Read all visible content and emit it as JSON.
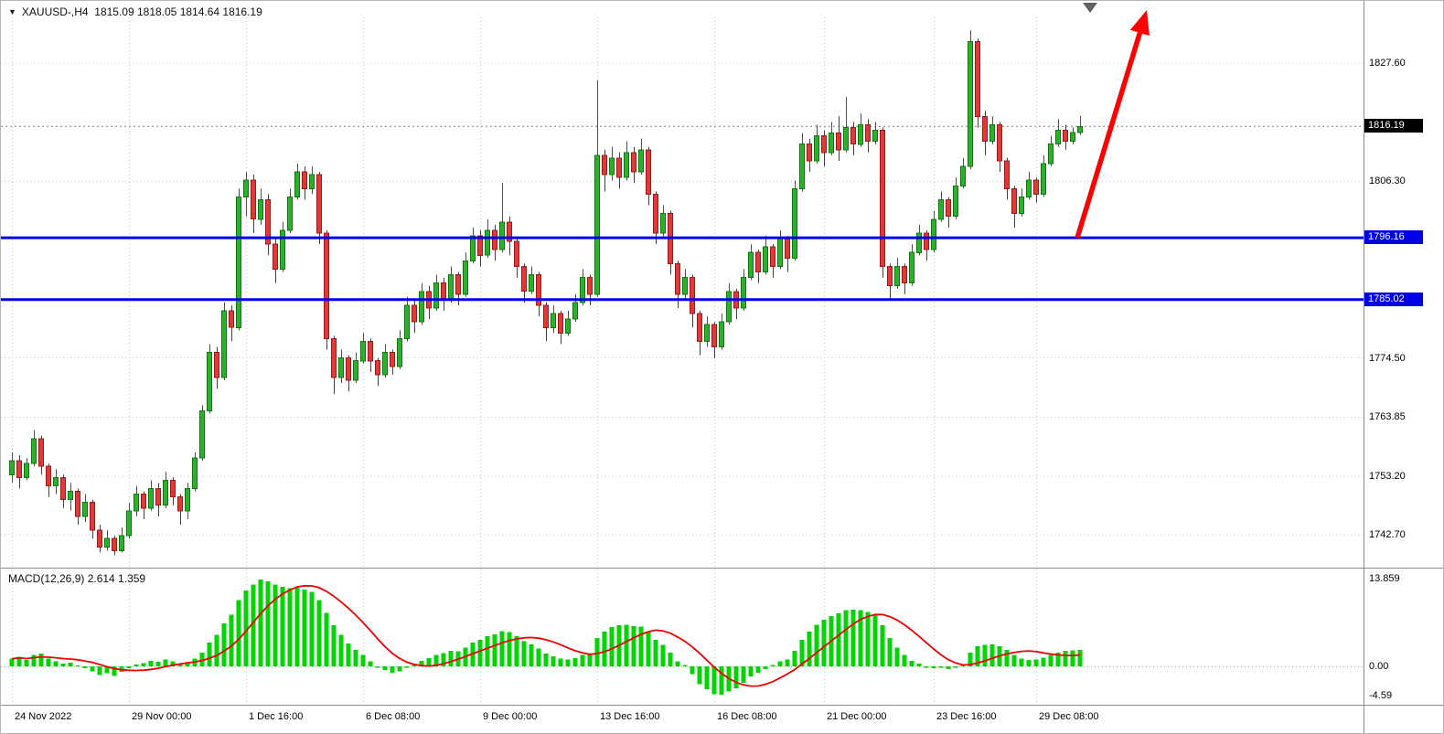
{
  "window": {
    "symbol_info": "XAUUSD-,H4  1815.09 1818.05 1814.64 1816.19",
    "symbol": "XAUUSD-",
    "timeframe": "H4",
    "open": "1815.09",
    "high": "1818.05",
    "low": "1814.64",
    "close": "1816.19"
  },
  "icons": {
    "symbol_marker": "▼"
  },
  "chart_data": {
    "type": "candlestick",
    "title": "XAUUSD- H4 candlestick chart with MACD(12,26,9), two blue horizontal levels and red up trend arrow",
    "symbol": "XAUUSD-",
    "timeframe": "H4",
    "grid": true,
    "price_axis": {
      "side": "right",
      "ticks": [
        {
          "label": "1827.60",
          "value": 1827.6
        },
        {
          "label": "1806.30",
          "value": 1806.3
        },
        {
          "label": "1774.50",
          "value": 1774.5
        },
        {
          "label": "1763.85",
          "value": 1763.85
        },
        {
          "label": "1753.20",
          "value": 1753.2
        },
        {
          "label": "1742.70",
          "value": 1742.7
        }
      ],
      "grid_values": [
        1827.6,
        1816.95,
        1806.3,
        1774.5,
        1763.85,
        1753.2,
        1742.7
      ],
      "current_price": {
        "value": 1816.19,
        "label": "1816.19"
      }
    },
    "time_axis": {
      "ticks": [
        {
          "index": 0,
          "label": "24 Nov 2022"
        },
        {
          "index": 16,
          "label": "29 Nov 00:00"
        },
        {
          "index": 32,
          "label": "1 Dec 16:00"
        },
        {
          "index": 48,
          "label": "6 Dec 08:00"
        },
        {
          "index": 64,
          "label": "9 Dec 00:00"
        },
        {
          "index": 80,
          "label": "13 Dec 16:00"
        },
        {
          "index": 96,
          "label": "16 Dec 08:00"
        },
        {
          "index": 111,
          "label": "21 Dec 00:00"
        },
        {
          "index": 126,
          "label": "23 Dec 16:00"
        },
        {
          "index": 140,
          "label": "29 Dec 08:00"
        }
      ]
    },
    "horizontal_lines": [
      {
        "price": 1796.16,
        "label": "1796.16",
        "color": "#0000E8",
        "name": "resistance-line"
      },
      {
        "price": 1785.02,
        "label": "1785.02",
        "color": "#0000E8",
        "name": "support-line"
      }
    ],
    "annotations": {
      "trend_arrow": {
        "type": "arrow",
        "direction": "up",
        "color": "#FF0000"
      },
      "chart_shift_marker": true
    },
    "candles": [
      [
        1753.5,
        1757.5,
        1752.0,
        1756.0
      ],
      [
        1756.0,
        1757.0,
        1751.0,
        1753.0
      ],
      [
        1753.0,
        1756.5,
        1752.5,
        1755.5
      ],
      [
        1755.5,
        1761.5,
        1755.0,
        1760.0
      ],
      [
        1760.0,
        1760.5,
        1753.5,
        1755.0
      ],
      [
        1755.0,
        1755.5,
        1749.5,
        1751.5
      ],
      [
        1751.5,
        1754.5,
        1750.0,
        1753.0
      ],
      [
        1753.0,
        1753.5,
        1747.5,
        1749.0
      ],
      [
        1749.0,
        1752.0,
        1747.0,
        1750.5
      ],
      [
        1750.5,
        1751.0,
        1744.5,
        1746.0
      ],
      [
        1746.0,
        1750.0,
        1745.0,
        1748.5
      ],
      [
        1748.5,
        1749.0,
        1742.0,
        1743.5
      ],
      [
        1743.5,
        1744.5,
        1739.5,
        1740.5
      ],
      [
        1740.5,
        1743.5,
        1739.8,
        1742.0
      ],
      [
        1742.0,
        1742.5,
        1739.0,
        1739.8
      ],
      [
        1739.8,
        1744.0,
        1739.5,
        1742.5
      ],
      [
        1742.5,
        1748.5,
        1742.0,
        1747.0
      ],
      [
        1747.0,
        1751.5,
        1746.0,
        1750.0
      ],
      [
        1750.0,
        1750.5,
        1745.5,
        1747.5
      ],
      [
        1747.5,
        1752.5,
        1747.0,
        1751.0
      ],
      [
        1751.0,
        1752.0,
        1746.0,
        1748.0
      ],
      [
        1748.0,
        1754.0,
        1747.5,
        1752.5
      ],
      [
        1752.5,
        1753.0,
        1748.0,
        1749.5
      ],
      [
        1749.5,
        1750.0,
        1744.5,
        1747.0
      ],
      [
        1747.0,
        1752.0,
        1745.5,
        1751.0
      ],
      [
        1751.0,
        1757.5,
        1750.5,
        1756.5
      ],
      [
        1756.5,
        1766.0,
        1756.0,
        1765.0
      ],
      [
        1765.0,
        1777.0,
        1764.5,
        1775.5
      ],
      [
        1775.5,
        1776.5,
        1769.0,
        1771.0
      ],
      [
        1771.0,
        1784.5,
        1770.5,
        1783.0
      ],
      [
        1783.0,
        1784.0,
        1777.5,
        1780.0
      ],
      [
        1780.0,
        1805.0,
        1779.5,
        1803.5
      ],
      [
        1803.5,
        1808.0,
        1800.0,
        1806.5
      ],
      [
        1806.5,
        1807.5,
        1797.0,
        1799.5
      ],
      [
        1799.5,
        1805.0,
        1798.5,
        1803.0
      ],
      [
        1803.0,
        1804.0,
        1793.0,
        1795.0
      ],
      [
        1795.0,
        1796.0,
        1788.0,
        1790.5
      ],
      [
        1790.5,
        1799.0,
        1790.0,
        1797.5
      ],
      [
        1797.5,
        1805.0,
        1797.0,
        1803.5
      ],
      [
        1803.5,
        1809.5,
        1803.0,
        1808.0
      ],
      [
        1808.0,
        1809.0,
        1803.0,
        1805.0
      ],
      [
        1805.0,
        1809.0,
        1804.0,
        1807.5
      ],
      [
        1807.5,
        1808.0,
        1795.0,
        1797.0
      ],
      [
        1797.0,
        1797.5,
        1776.0,
        1778.0
      ],
      [
        1778.0,
        1778.5,
        1768.0,
        1771.0
      ],
      [
        1771.0,
        1776.0,
        1770.0,
        1774.5
      ],
      [
        1774.5,
        1775.0,
        1768.5,
        1770.5
      ],
      [
        1770.5,
        1775.5,
        1770.0,
        1774.0
      ],
      [
        1774.0,
        1779.0,
        1773.5,
        1777.5
      ],
      [
        1777.5,
        1778.0,
        1772.0,
        1774.0
      ],
      [
        1774.0,
        1774.5,
        1769.5,
        1771.5
      ],
      [
        1771.5,
        1777.0,
        1771.0,
        1775.5
      ],
      [
        1775.5,
        1776.0,
        1771.5,
        1773.0
      ],
      [
        1773.0,
        1779.5,
        1772.5,
        1778.0
      ],
      [
        1778.0,
        1785.5,
        1777.5,
        1784.0
      ],
      [
        1784.0,
        1785.0,
        1779.0,
        1781.0
      ],
      [
        1781.0,
        1788.0,
        1780.5,
        1786.5
      ],
      [
        1786.5,
        1787.5,
        1781.5,
        1783.5
      ],
      [
        1783.5,
        1789.5,
        1783.0,
        1788.0
      ],
      [
        1788.0,
        1789.0,
        1783.0,
        1785.0
      ],
      [
        1785.0,
        1791.0,
        1784.5,
        1789.5
      ],
      [
        1789.5,
        1790.0,
        1784.0,
        1786.0
      ],
      [
        1786.0,
        1793.5,
        1785.5,
        1792.0
      ],
      [
        1792.0,
        1798.0,
        1791.5,
        1796.5
      ],
      [
        1796.5,
        1797.5,
        1791.0,
        1793.0
      ],
      [
        1793.0,
        1799.5,
        1792.5,
        1797.5
      ],
      [
        1797.5,
        1798.5,
        1792.0,
        1794.0
      ],
      [
        1794.0,
        1806.0,
        1793.5,
        1799.0
      ],
      [
        1799.0,
        1800.0,
        1793.0,
        1795.5
      ],
      [
        1795.5,
        1796.0,
        1789.0,
        1791.0
      ],
      [
        1791.0,
        1791.5,
        1784.5,
        1786.5
      ],
      [
        1786.5,
        1791.0,
        1786.0,
        1789.5
      ],
      [
        1789.5,
        1790.0,
        1782.0,
        1784.0
      ],
      [
        1784.0,
        1784.5,
        1777.5,
        1780.0
      ],
      [
        1780.0,
        1784.0,
        1779.0,
        1782.5
      ],
      [
        1782.5,
        1783.0,
        1777.0,
        1779.0
      ],
      [
        1779.0,
        1783.0,
        1778.5,
        1781.5
      ],
      [
        1781.5,
        1786.0,
        1781.0,
        1784.5
      ],
      [
        1784.5,
        1790.5,
        1784.0,
        1789.0
      ],
      [
        1789.0,
        1789.5,
        1784.0,
        1786.0
      ],
      [
        1786.0,
        1824.5,
        1785.5,
        1811.0
      ],
      [
        1811.0,
        1812.0,
        1804.5,
        1807.5
      ],
      [
        1807.5,
        1812.5,
        1806.5,
        1810.5
      ],
      [
        1810.5,
        1811.5,
        1805.0,
        1807.0
      ],
      [
        1807.0,
        1813.5,
        1806.5,
        1811.5
      ],
      [
        1811.5,
        1812.5,
        1806.0,
        1808.0
      ],
      [
        1808.0,
        1814.0,
        1807.5,
        1812.0
      ],
      [
        1812.0,
        1812.5,
        1802.0,
        1804.0
      ],
      [
        1804.0,
        1804.5,
        1795.0,
        1797.0
      ],
      [
        1797.0,
        1802.0,
        1796.0,
        1800.5
      ],
      [
        1800.5,
        1801.0,
        1789.5,
        1791.5
      ],
      [
        1791.5,
        1792.0,
        1783.5,
        1786.0
      ],
      [
        1786.0,
        1790.5,
        1785.0,
        1789.0
      ],
      [
        1789.0,
        1789.5,
        1780.0,
        1782.5
      ],
      [
        1782.5,
        1783.0,
        1775.0,
        1777.5
      ],
      [
        1777.5,
        1782.0,
        1776.5,
        1780.5
      ],
      [
        1780.5,
        1781.0,
        1774.5,
        1776.5
      ],
      [
        1776.5,
        1782.5,
        1776.0,
        1781.0
      ],
      [
        1781.0,
        1788.0,
        1780.5,
        1786.5
      ],
      [
        1786.5,
        1787.0,
        1781.5,
        1783.5
      ],
      [
        1783.5,
        1790.5,
        1783.0,
        1789.0
      ],
      [
        1789.0,
        1795.0,
        1788.5,
        1793.5
      ],
      [
        1793.5,
        1794.0,
        1788.0,
        1790.0
      ],
      [
        1790.0,
        1796.5,
        1789.5,
        1794.5
      ],
      [
        1794.5,
        1795.0,
        1789.0,
        1791.0
      ],
      [
        1791.0,
        1797.5,
        1790.5,
        1796.0
      ],
      [
        1796.0,
        1796.5,
        1790.0,
        1792.5
      ],
      [
        1792.5,
        1806.5,
        1792.0,
        1805.0
      ],
      [
        1805.0,
        1815.0,
        1804.5,
        1813.0
      ],
      [
        1813.0,
        1814.0,
        1808.0,
        1810.0
      ],
      [
        1810.0,
        1816.5,
        1809.5,
        1814.5
      ],
      [
        1814.5,
        1815.5,
        1809.0,
        1811.5
      ],
      [
        1811.5,
        1817.0,
        1811.0,
        1815.0
      ],
      [
        1815.0,
        1818.0,
        1810.0,
        1812.0
      ],
      [
        1812.0,
        1821.5,
        1811.5,
        1816.0
      ],
      [
        1816.0,
        1817.0,
        1811.0,
        1813.0
      ],
      [
        1813.0,
        1818.5,
        1812.5,
        1816.5
      ],
      [
        1816.5,
        1817.5,
        1811.5,
        1813.5
      ],
      [
        1813.5,
        1817.0,
        1813.0,
        1815.5
      ],
      [
        1815.5,
        1816.0,
        1789.0,
        1791.0
      ],
      [
        1791.0,
        1791.5,
        1785.0,
        1787.5
      ],
      [
        1787.5,
        1792.5,
        1787.0,
        1791.0
      ],
      [
        1791.0,
        1791.5,
        1786.0,
        1788.0
      ],
      [
        1788.0,
        1795.0,
        1787.5,
        1793.5
      ],
      [
        1793.5,
        1798.5,
        1793.0,
        1797.0
      ],
      [
        1797.0,
        1797.5,
        1792.0,
        1794.0
      ],
      [
        1794.0,
        1801.0,
        1793.5,
        1799.5
      ],
      [
        1799.5,
        1804.5,
        1799.0,
        1803.0
      ],
      [
        1803.0,
        1803.5,
        1798.0,
        1800.0
      ],
      [
        1800.0,
        1807.0,
        1799.5,
        1805.5
      ],
      [
        1805.5,
        1810.5,
        1805.0,
        1809.0
      ],
      [
        1809.0,
        1833.5,
        1808.5,
        1831.5
      ],
      [
        1831.5,
        1832.0,
        1816.0,
        1818.0
      ],
      [
        1818.0,
        1819.0,
        1811.0,
        1813.5
      ],
      [
        1813.5,
        1818.0,
        1813.0,
        1816.5
      ],
      [
        1816.5,
        1817.0,
        1808.0,
        1810.0
      ],
      [
        1810.0,
        1810.5,
        1803.0,
        1805.0
      ],
      [
        1805.0,
        1805.5,
        1798.0,
        1800.5
      ],
      [
        1800.5,
        1805.0,
        1800.0,
        1803.5
      ],
      [
        1803.5,
        1808.0,
        1803.0,
        1806.5
      ],
      [
        1806.5,
        1807.0,
        1802.5,
        1804.0
      ],
      [
        1804.0,
        1811.0,
        1803.5,
        1809.5
      ],
      [
        1809.5,
        1814.5,
        1809.0,
        1813.0
      ],
      [
        1813.0,
        1817.5,
        1812.5,
        1815.5
      ],
      [
        1815.5,
        1816.5,
        1812.0,
        1813.5
      ],
      [
        1813.5,
        1816.0,
        1813.0,
        1815.09
      ],
      [
        1815.09,
        1818.05,
        1814.64,
        1816.19
      ]
    ],
    "macd": {
      "label": "MACD(12,26,9) 2.614 1.359",
      "name": "MACD",
      "params": "12,26,9",
      "macd_value": "2.614",
      "signal_value": "1.359",
      "signal_period": 9,
      "axis_ticks": [
        {
          "label": "13.859",
          "value": 13.859
        },
        {
          "label": "0.00",
          "value": 0
        },
        {
          "label": "-4.59",
          "value": -4.59
        }
      ],
      "histogram": [
        1.2,
        1.5,
        1.0,
        1.8,
        2.0,
        1.2,
        0.8,
        0.4,
        0.6,
        0.1,
        -0.3,
        -0.8,
        -1.4,
        -1.1,
        -1.5,
        -0.9,
        -0.3,
        0.3,
        0.5,
        0.9,
        0.7,
        1.1,
        0.8,
        0.3,
        0.6,
        1.2,
        2.2,
        3.8,
        5.0,
        6.8,
        8.2,
        10.5,
        12.0,
        13.0,
        13.8,
        13.5,
        13.0,
        12.6,
        12.4,
        12.5,
        12.2,
        11.8,
        10.5,
        8.5,
        6.5,
        5.0,
        3.6,
        2.6,
        1.8,
        0.8,
        -0.2,
        -0.6,
        -1.0,
        -0.8,
        -0.2,
        0.3,
        0.9,
        1.3,
        1.8,
        2.1,
        2.5,
        2.4,
        3.0,
        3.8,
        4.2,
        4.8,
        5.1,
        5.6,
        5.4,
        4.8,
        4.0,
        3.5,
        2.8,
        2.0,
        1.6,
        1.2,
        1.1,
        1.3,
        1.8,
        1.9,
        4.5,
        5.5,
        6.2,
        6.5,
        6.6,
        6.4,
        6.3,
        5.5,
        4.2,
        3.4,
        2.2,
        0.8,
        0.2,
        -1.2,
        -2.8,
        -3.6,
        -4.4,
        -4.5,
        -4.0,
        -3.5,
        -2.6,
        -1.6,
        -1.0,
        -0.4,
        0.2,
        0.8,
        1.1,
        2.5,
        4.2,
        5.5,
        6.6,
        7.4,
        8.0,
        8.4,
        8.9,
        9.0,
        8.9,
        8.6,
        8.2,
        6.5,
        4.5,
        3.0,
        1.8,
        0.9,
        0.4,
        -0.2,
        -0.3,
        -0.2,
        -0.4,
        -0.2,
        0.3,
        2.2,
        3.2,
        3.4,
        3.5,
        3.2,
        2.6,
        1.8,
        1.2,
        1.0,
        1.1,
        1.4,
        1.8,
        2.2,
        2.5,
        2.55,
        2.614
      ]
    },
    "colors": {
      "background": "#FFFFFF",
      "grid": "#C8C8C8",
      "candle_up_fill": "#2EAE2E",
      "candle_up_border": "#0E7A0E",
      "candle_down_fill": "#DF3838",
      "candle_down_border": "#9C1A1A",
      "macd_histogram": "#00D400",
      "macd_signal": "#F00000",
      "hline": "#0000E8",
      "arrow": "#FF0000",
      "current_price_bg": "#000000",
      "axis_text": "#000000",
      "separator": "#8C8C8C"
    }
  }
}
